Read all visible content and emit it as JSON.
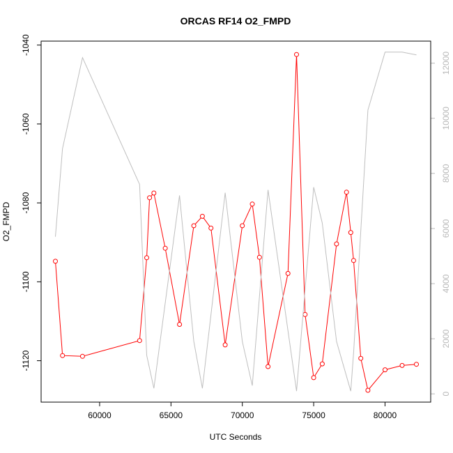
{
  "chart_data": {
    "type": "line",
    "title": "ORCAS RF14 O2_FMPD",
    "xlabel": "UTC Seconds",
    "ylabel": "O2_FMPD",
    "xlim": [
      55900,
      83200
    ],
    "ylim": [
      -1130.5,
      -1039
    ],
    "ylim_right": [
      -300,
      12800
    ],
    "x_ticks": [
      60000,
      65000,
      70000,
      75000,
      80000
    ],
    "y_ticks": [
      -1120,
      -1100,
      -1080,
      -1060,
      -1040
    ],
    "y_ticks_right": [
      0,
      2000,
      4000,
      6000,
      8000,
      10000,
      12000
    ],
    "grid": false,
    "series": [
      {
        "axis": "left",
        "color": "#ff0000",
        "markers": "open-circle",
        "x": [
          56900,
          57400,
          58800,
          62800,
          63300,
          63500,
          63800,
          64600,
          65600,
          66600,
          67200,
          67800,
          68800,
          70000,
          70700,
          71200,
          71800,
          73200,
          73800,
          74400,
          75000,
          75600,
          76600,
          77300,
          77600,
          77800,
          78300,
          78800,
          80000,
          81200,
          82200
        ],
        "y": [
          -1094.8,
          -1118.7,
          -1118.9,
          -1114.9,
          -1093.9,
          -1078.7,
          -1077.5,
          -1091.5,
          -1110.8,
          -1085.8,
          -1083.4,
          -1086.4,
          -1116.0,
          -1085.8,
          -1080.3,
          -1093.8,
          -1121.5,
          -1097.9,
          -1042.4,
          -1108.3,
          -1124.3,
          -1120.8,
          -1090.4,
          -1077.3,
          -1087.5,
          -1094.6,
          -1119.4,
          -1127.5,
          -1122.3,
          -1121.2,
          -1120.9
        ]
      },
      {
        "axis": "right",
        "color": "#bebebe",
        "markers": "none",
        "x": [
          56900,
          57400,
          58800,
          62800,
          63300,
          63800,
          65600,
          66600,
          67200,
          68800,
          70000,
          70700,
          71800,
          73800,
          75000,
          75600,
          76600,
          77600,
          77800,
          78800,
          80000,
          81200,
          82200
        ],
        "y": [
          5700,
          8900,
          12200,
          7600,
          1400,
          200,
          7200,
          1900,
          200,
          7300,
          1900,
          300,
          7400,
          100,
          7500,
          6200,
          1900,
          100,
          1500,
          10300,
          12400,
          12400,
          12300
        ]
      }
    ]
  }
}
